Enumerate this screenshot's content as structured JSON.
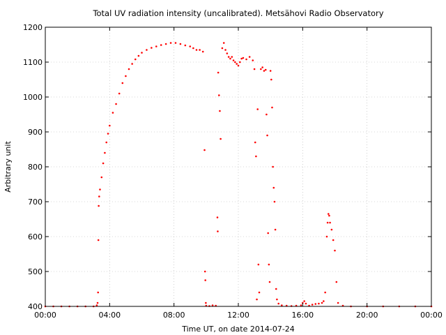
{
  "chart_data": {
    "type": "scatter",
    "title": "Total UV radiation intensity (uncalibrated). Metsähovi Radio Observatory",
    "xlabel": "Time UT, on date 2014-07-24",
    "ylabel": "Arbitrary unit",
    "xlim": [
      0,
      24
    ],
    "ylim": [
      400,
      1200
    ],
    "x_ticks": [
      0,
      4,
      8,
      12,
      16,
      20,
      24
    ],
    "x_tick_labels": [
      "00:00",
      "04:00",
      "08:00",
      "12:00",
      "16:00",
      "20:00",
      "00:00"
    ],
    "y_ticks": [
      400,
      500,
      600,
      700,
      800,
      900,
      1000,
      1100,
      1200
    ],
    "y_tick_labels": [
      "400",
      "500",
      "600",
      "700",
      "800",
      "900",
      "1000",
      "1100",
      "1200"
    ],
    "grid": true,
    "legend": "none",
    "marker_color": "#ff0000",
    "series": [
      {
        "x": [
          0.0,
          0.5,
          1.0,
          1.5,
          2.0,
          2.5,
          3.0,
          3.2,
          3.25,
          3.28,
          3.3,
          3.32,
          3.35,
          3.4,
          3.5,
          3.6,
          3.7,
          3.8,
          3.9,
          4.0,
          4.2,
          4.4,
          4.6,
          4.8,
          5.0,
          5.2,
          5.4,
          5.6,
          5.8,
          6.0,
          6.3,
          6.6,
          6.9,
          7.2,
          7.5,
          7.8,
          8.1,
          8.4,
          8.7,
          9.0,
          9.2,
          9.4,
          9.6,
          9.8,
          9.9,
          9.93,
          9.95,
          9.98,
          10.0,
          10.2,
          10.4,
          10.6,
          10.7,
          10.72,
          10.75,
          10.8,
          10.85,
          10.9,
          11.0,
          11.1,
          11.2,
          11.3,
          11.4,
          11.5,
          11.6,
          11.7,
          11.8,
          11.9,
          12.0,
          12.1,
          12.2,
          12.3,
          12.5,
          12.7,
          12.9,
          13.0,
          13.05,
          13.1,
          13.15,
          13.2,
          13.25,
          13.3,
          13.4,
          13.5,
          13.6,
          13.7,
          13.75,
          13.8,
          13.85,
          13.9,
          13.95,
          14.0,
          14.05,
          14.1,
          14.15,
          14.2,
          14.25,
          14.3,
          14.35,
          14.4,
          14.5,
          14.7,
          15.0,
          15.3,
          15.6,
          15.9,
          16.0,
          16.1,
          16.2,
          16.4,
          16.6,
          16.8,
          17.0,
          17.2,
          17.3,
          17.4,
          17.5,
          17.55,
          17.6,
          17.65,
          17.7,
          17.8,
          17.9,
          18.0,
          18.1,
          18.2,
          18.5,
          19.0,
          20.0,
          21.0,
          22.0,
          23.0,
          24.0
        ],
        "y": [
          400,
          400,
          400,
          400,
          400,
          400,
          400,
          403,
          410,
          440,
          590,
          688,
          715,
          735,
          770,
          810,
          840,
          870,
          895,
          918,
          955,
          980,
          1010,
          1040,
          1060,
          1080,
          1095,
          1108,
          1118,
          1127,
          1135,
          1141,
          1145,
          1149,
          1152,
          1155,
          1155,
          1152,
          1148,
          1145,
          1140,
          1135,
          1135,
          1130,
          848,
          500,
          475,
          410,
          402,
          401,
          403,
          402,
          655,
          615,
          1070,
          1005,
          960,
          880,
          1140,
          1155,
          1135,
          1125,
          1115,
          1110,
          1115,
          1105,
          1100,
          1095,
          1090,
          1100,
          1110,
          1112,
          1108,
          1115,
          1105,
          1080,
          870,
          830,
          420,
          965,
          520,
          440,
          1080,
          1085,
          1075,
          1078,
          950,
          890,
          610,
          520,
          470,
          1075,
          1050,
          970,
          800,
          740,
          700,
          620,
          450,
          420,
          408,
          403,
          402,
          401,
          402,
          403,
          410,
          415,
          408,
          402,
          405,
          407,
          408,
          410,
          415,
          440,
          600,
          640,
          665,
          660,
          640,
          620,
          590,
          560,
          470,
          410,
          402,
          400,
          400,
          400,
          400,
          400,
          400
        ]
      }
    ]
  }
}
